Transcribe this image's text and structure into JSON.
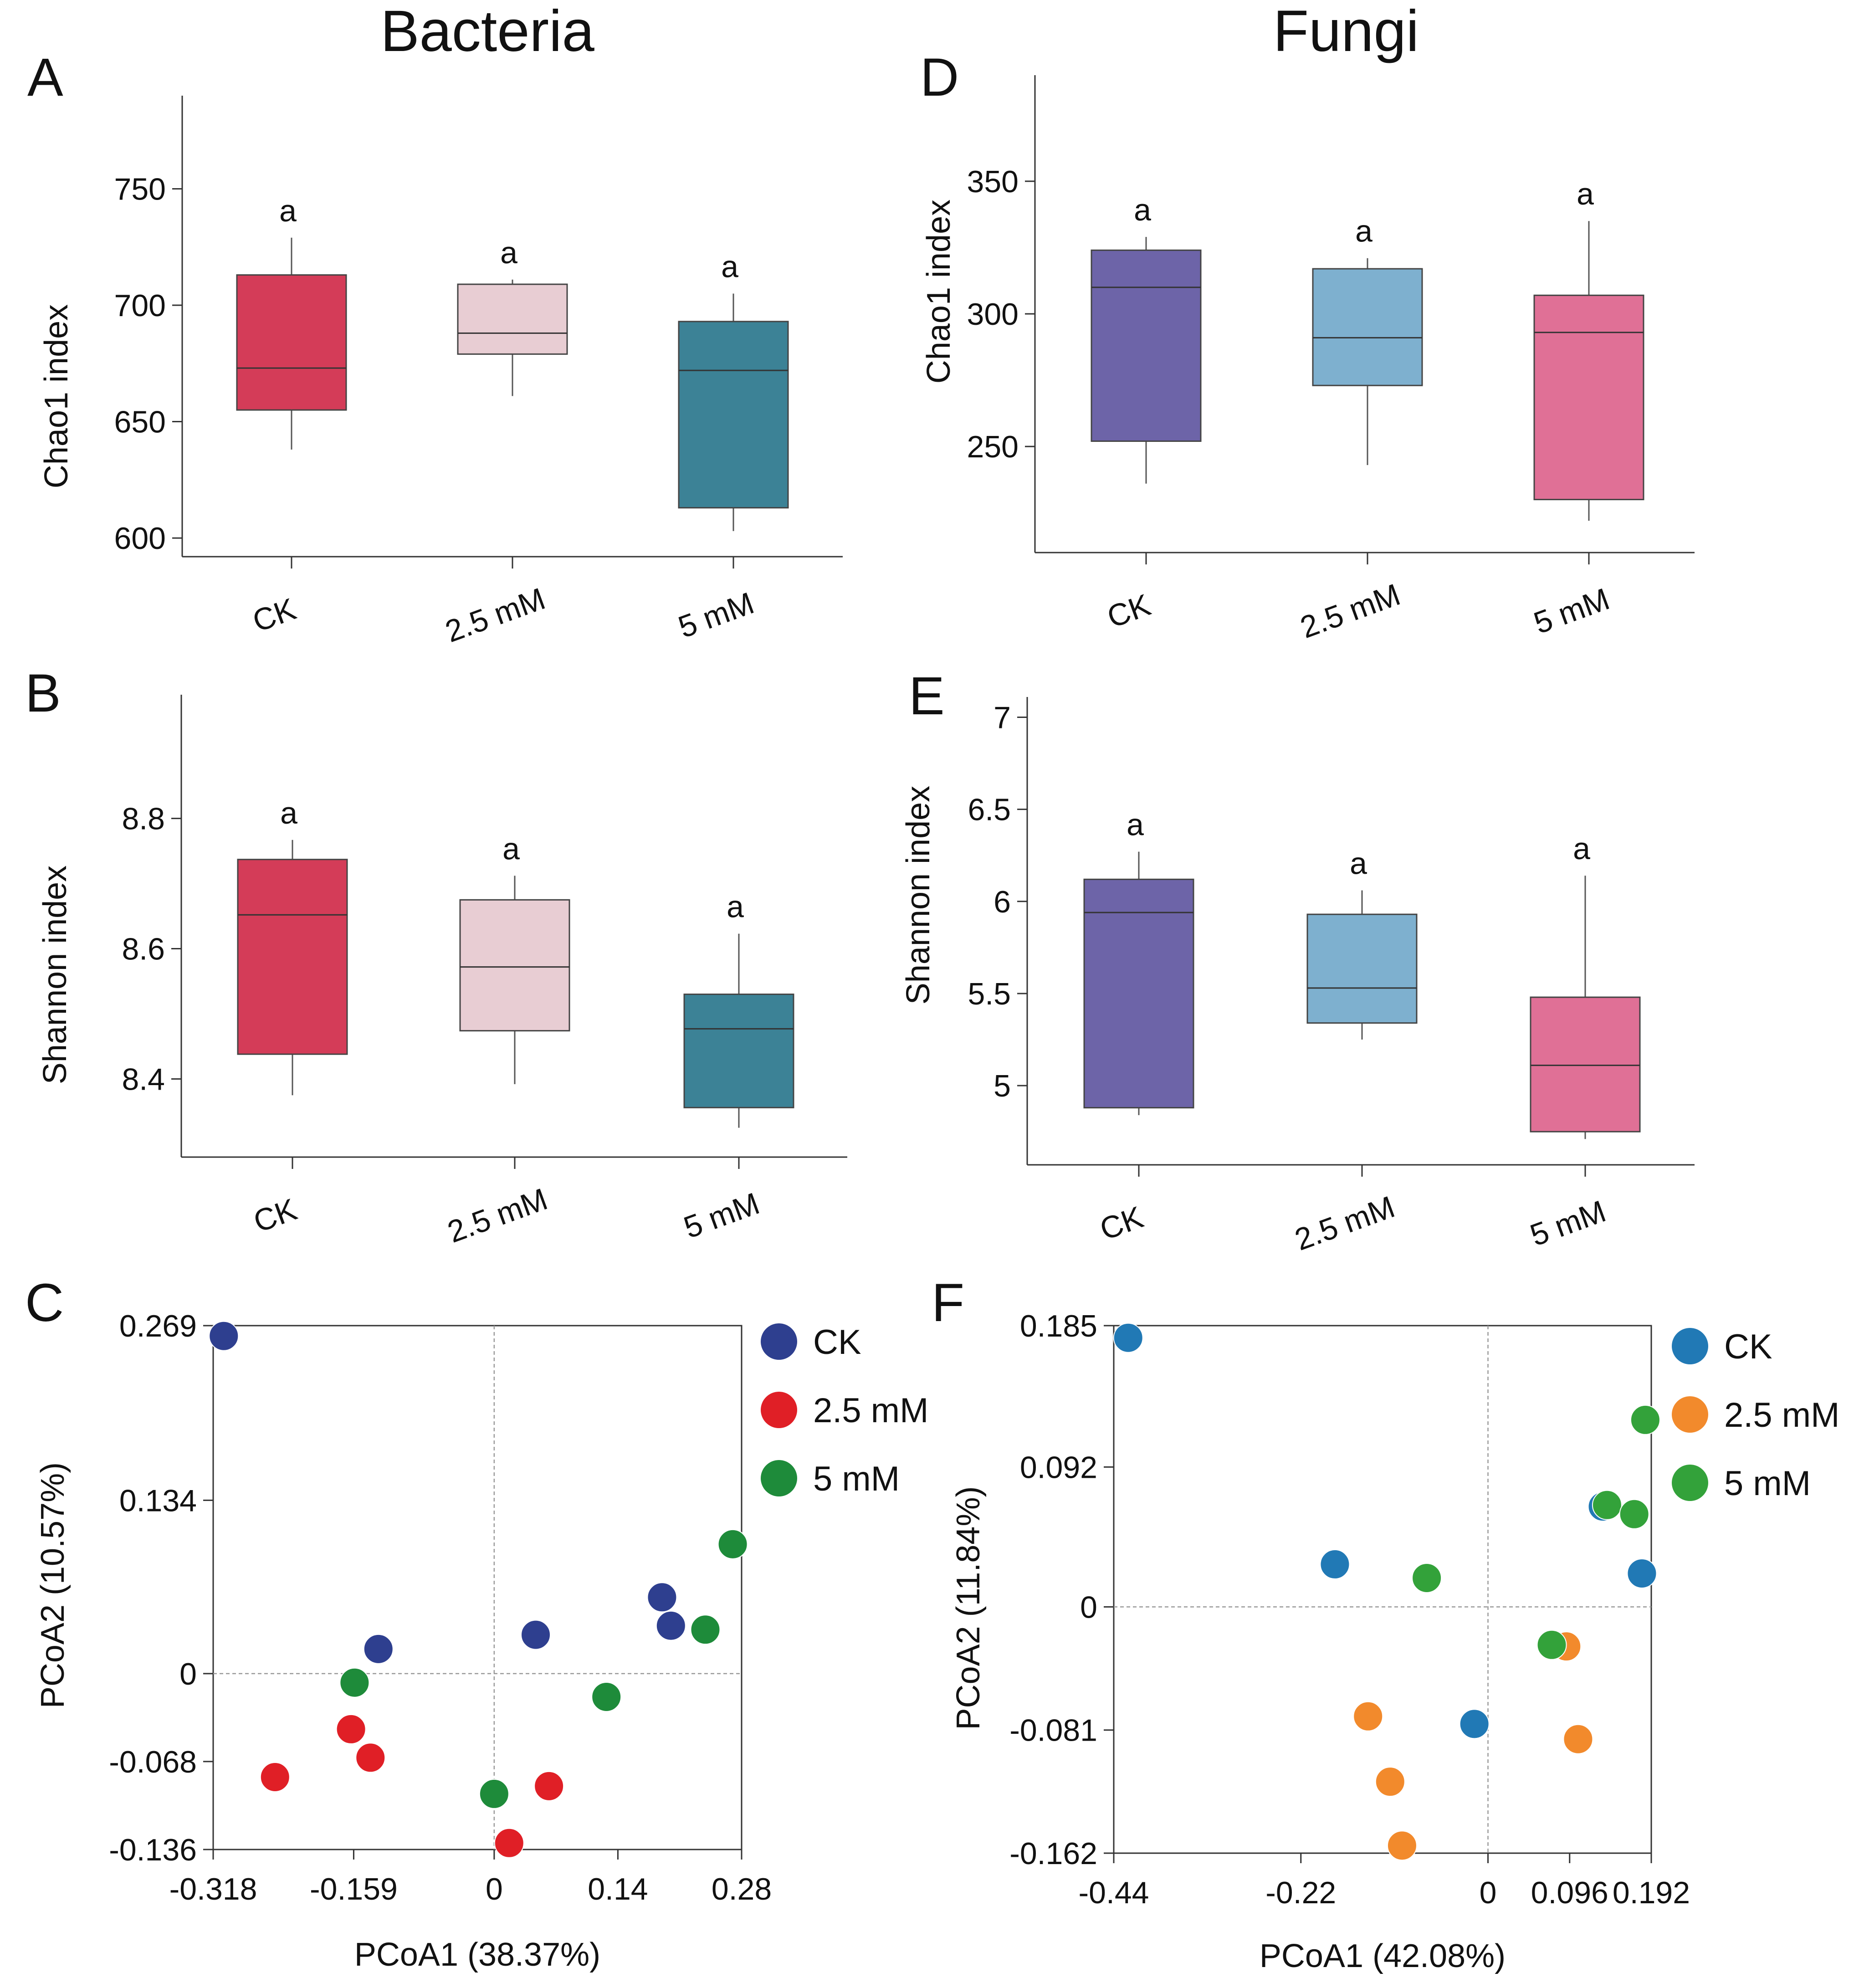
{
  "titles": {
    "left": "Bacteria",
    "right": "Fungi"
  },
  "chart_data": [
    {
      "id": "A",
      "letter": "A",
      "type": "box",
      "title": "",
      "xlabel": "",
      "ylabel": "Chao1 index",
      "ylim": [
        592,
        790
      ],
      "yticks": [
        600,
        650,
        700,
        750
      ],
      "categories": [
        "CK",
        "2.5 mM",
        "5 mM"
      ],
      "boxes": [
        {
          "category": "CK",
          "min": 638,
          "q1": 655,
          "median": 673,
          "q3": 713,
          "max": 729,
          "color": "#D43C58",
          "letter": "a"
        },
        {
          "category": "2.5 mM",
          "min": 661,
          "q1": 679,
          "median": 688,
          "q3": 709,
          "max": 711,
          "color": "#E8CDD3",
          "letter": "a"
        },
        {
          "category": "5 mM",
          "min": 603,
          "q1": 613,
          "median": 672,
          "q3": 693,
          "max": 705,
          "color": "#3C8296",
          "letter": "a"
        }
      ]
    },
    {
      "id": "B",
      "letter": "B",
      "type": "box",
      "title": "",
      "xlabel": "",
      "ylabel": "Shannon index",
      "ylim": [
        8.28,
        8.99
      ],
      "yticks": [
        8.4,
        8.6,
        8.8
      ],
      "categories": [
        "CK",
        "2.5 mM",
        "5 mM"
      ],
      "boxes": [
        {
          "category": "CK",
          "min": 8.375,
          "q1": 8.438,
          "median": 8.652,
          "q3": 8.737,
          "max": 8.767,
          "color": "#D43C58",
          "letter": "a"
        },
        {
          "category": "2.5 mM",
          "min": 8.392,
          "q1": 8.474,
          "median": 8.572,
          "q3": 8.675,
          "max": 8.712,
          "color": "#E8CDD3",
          "letter": "a"
        },
        {
          "category": "5 mM",
          "min": 8.325,
          "q1": 8.356,
          "median": 8.477,
          "q3": 8.53,
          "max": 8.623,
          "color": "#3C8296",
          "letter": "a"
        }
      ]
    },
    {
      "id": "C",
      "letter": "C",
      "type": "scatter",
      "title": "",
      "xlabel": "PCoA1 (38.37%)",
      "ylabel": "PCoA2 (10.57%)",
      "xlim": [
        -0.318,
        0.28
      ],
      "ylim": [
        -0.136,
        0.269
      ],
      "xticks": [
        -0.318,
        -0.159,
        0,
        0.14,
        0.28
      ],
      "yticks": [
        -0.136,
        -0.068,
        0,
        0.134,
        0.269
      ],
      "xtick_labels": [
        "-0.318",
        "-0.159",
        "0",
        "0.14",
        "0.28"
      ],
      "ytick_labels": [
        "-0.136",
        "-0.068",
        "0",
        "0.134",
        "0.269"
      ],
      "legend_position": "right",
      "series": [
        {
          "name": "CK",
          "color": "#2E3F8F",
          "points": [
            {
              "x": -0.306,
              "y": 0.261
            },
            {
              "x": -0.131,
              "y": 0.019
            },
            {
              "x": 0.047,
              "y": 0.03
            },
            {
              "x": 0.19,
              "y": 0.059
            },
            {
              "x": 0.2,
              "y": 0.037
            }
          ]
        },
        {
          "name": "2.5 mM",
          "color": "#E01F26",
          "points": [
            {
              "x": -0.248,
              "y": -0.08
            },
            {
              "x": -0.162,
              "y": -0.043
            },
            {
              "x": -0.14,
              "y": -0.065
            },
            {
              "x": 0.017,
              "y": -0.131
            },
            {
              "x": 0.062,
              "y": -0.087
            }
          ]
        },
        {
          "name": "5 mM",
          "color": "#1E8B3A",
          "points": [
            {
              "x": -0.158,
              "y": -0.007
            },
            {
              "x": 0.0,
              "y": -0.093
            },
            {
              "x": 0.127,
              "y": -0.018
            },
            {
              "x": 0.239,
              "y": 0.034
            },
            {
              "x": 0.27,
              "y": 0.1
            }
          ]
        }
      ]
    },
    {
      "id": "D",
      "letter": "D",
      "type": "box",
      "title": "",
      "xlabel": "",
      "ylabel": "Chao1 index",
      "ylim": [
        210,
        390
      ],
      "yticks": [
        250,
        300,
        350
      ],
      "categories": [
        "CK",
        "2.5 mM",
        "5 mM"
      ],
      "boxes": [
        {
          "category": "CK",
          "min": 236,
          "q1": 252,
          "median": 310,
          "q3": 324,
          "max": 329,
          "color": "#6D64A8",
          "letter": "a"
        },
        {
          "category": "2.5 mM",
          "min": 243,
          "q1": 273,
          "median": 291,
          "q3": 317,
          "max": 321,
          "color": "#7EB0CF",
          "letter": "a"
        },
        {
          "category": "5 mM",
          "min": 222,
          "q1": 230,
          "median": 293,
          "q3": 307,
          "max": 335,
          "color": "#E07096",
          "letter": "a"
        }
      ]
    },
    {
      "id": "E",
      "letter": "E",
      "type": "box",
      "title": "",
      "xlabel": "",
      "ylabel": "Shannon index",
      "ylim": [
        4.57,
        7.11
      ],
      "yticks": [
        5,
        5.5,
        6,
        6.5,
        7
      ],
      "categories": [
        "CK",
        "2.5 mM",
        "5 mM"
      ],
      "boxes": [
        {
          "category": "CK",
          "min": 4.84,
          "q1": 4.88,
          "median": 5.94,
          "q3": 6.12,
          "max": 6.27,
          "color": "#6D64A8",
          "letter": "a"
        },
        {
          "category": "2.5 mM",
          "min": 5.25,
          "q1": 5.34,
          "median": 5.53,
          "q3": 5.93,
          "max": 6.06,
          "color": "#7EB0CF",
          "letter": "a"
        },
        {
          "category": "5 mM",
          "min": 4.71,
          "q1": 4.75,
          "median": 5.11,
          "q3": 5.48,
          "max": 6.14,
          "color": "#E07096",
          "letter": "a"
        }
      ]
    },
    {
      "id": "F",
      "letter": "F",
      "type": "scatter",
      "title": "",
      "xlabel": "PCoA1 (42.08%)",
      "ylabel": "PCoA2 (11.84%)",
      "xlim": [
        -0.44,
        0.192
      ],
      "ylim": [
        -0.162,
        0.185
      ],
      "xticks": [
        -0.44,
        -0.22,
        0,
        0.096,
        0.192
      ],
      "yticks": [
        -0.162,
        -0.081,
        0,
        0.092,
        0.185
      ],
      "xtick_labels": [
        "-0.44",
        "-0.22",
        "0",
        "0.096",
        "0.192"
      ],
      "ytick_labels": [
        "-0.162",
        "-0.081",
        "0",
        "0.092",
        "0.185"
      ],
      "legend_position": "right",
      "series": [
        {
          "name": "CK",
          "color": "#2179B5",
          "points": [
            {
              "x": -0.423,
              "y": 0.177
            },
            {
              "x": -0.18,
              "y": 0.028
            },
            {
              "x": -0.016,
              "y": -0.077
            },
            {
              "x": 0.135,
              "y": 0.066
            },
            {
              "x": 0.181,
              "y": 0.022
            }
          ]
        },
        {
          "name": "2.5 mM",
          "color": "#F28A2C",
          "points": [
            {
              "x": -0.141,
              "y": -0.072
            },
            {
              "x": -0.115,
              "y": -0.115
            },
            {
              "x": -0.101,
              "y": -0.157
            },
            {
              "x": 0.092,
              "y": -0.026
            },
            {
              "x": 0.106,
              "y": -0.087
            }
          ]
        },
        {
          "name": "5 mM",
          "color": "#33A23A",
          "points": [
            {
              "x": -0.072,
              "y": 0.019
            },
            {
              "x": 0.075,
              "y": -0.025
            },
            {
              "x": 0.14,
              "y": 0.067
            },
            {
              "x": 0.172,
              "y": 0.061
            },
            {
              "x": 0.185,
              "y": 0.123
            }
          ]
        }
      ]
    }
  ]
}
